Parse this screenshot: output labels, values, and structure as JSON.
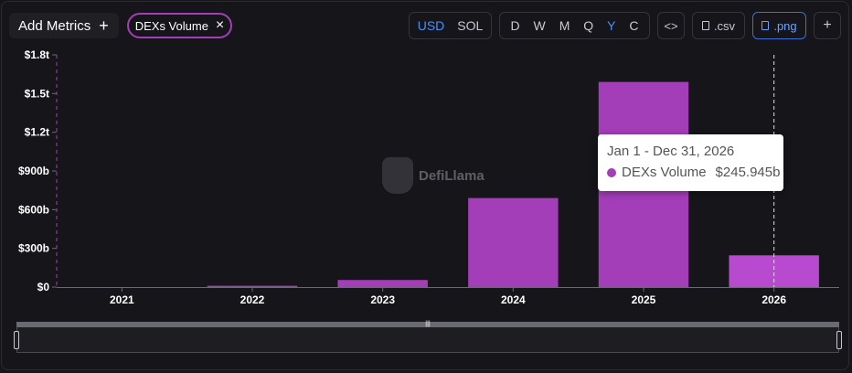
{
  "toolbar": {
    "add_metrics": "Add Metrics",
    "add_plus": "+",
    "chip_label": "DEXs Volume",
    "chip_close": "×",
    "currency": [
      "USD",
      "SOL"
    ],
    "currency_active": "USD",
    "periods": [
      "D",
      "W",
      "M",
      "Q",
      "Y",
      "C"
    ],
    "period_active": "Y",
    "code": "<>",
    "csv": ".csv",
    "png": ".png",
    "plus": "+"
  },
  "watermark": "DefiLlama",
  "tooltip": {
    "date": "Jan 1 - Dec 31, 2026",
    "series": "DEXs Volume",
    "value": "$245.945b"
  },
  "colors": {
    "bar": "#a33db8",
    "bar_highlight": "#b84ad0",
    "accent": "#4d8ef7",
    "background": "#16161a"
  },
  "chart_data": {
    "type": "bar",
    "categories": [
      "2021",
      "2022",
      "2023",
      "2024",
      "2025",
      "2026"
    ],
    "values": [
      0,
      10,
      55,
      690,
      1590,
      245.945
    ],
    "value_unit": "billion USD",
    "ylim": [
      0,
      1800
    ],
    "yticks": [
      0,
      300,
      600,
      900,
      1200,
      1500,
      1800
    ],
    "ytick_labels": [
      "$0",
      "$300b",
      "$600b",
      "$900b",
      "$1.2t",
      "$1.5t",
      "$1.8t"
    ],
    "series": [
      {
        "name": "DEXs Volume",
        "values": [
          0,
          10,
          55,
          690,
          1590,
          245.945
        ]
      }
    ],
    "highlighted_category": "2026",
    "grid": false
  }
}
